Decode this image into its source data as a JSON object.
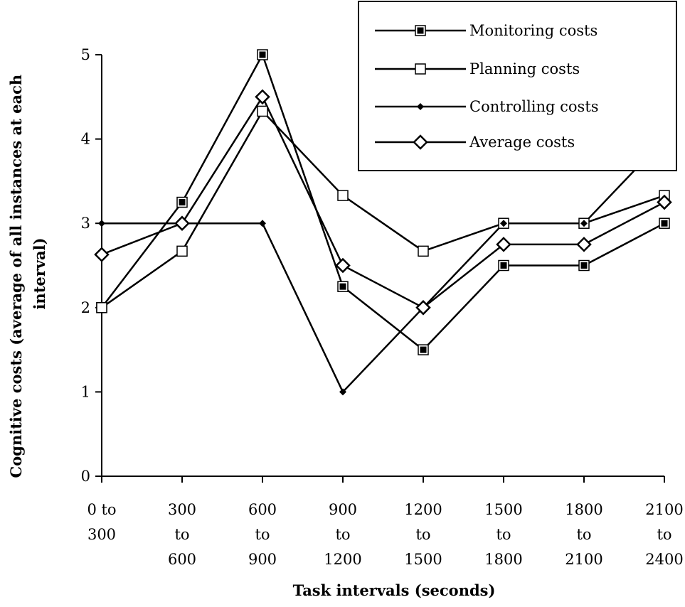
{
  "chart_data": {
    "type": "line",
    "title": "",
    "xlabel": "Task intervals (seconds)",
    "ylabel_lines": [
      "Cognitive costs (average of all instances at each",
      "interval)"
    ],
    "ylim": [
      0,
      5
    ],
    "yticks": [
      "0",
      "1",
      "2",
      "3",
      "4",
      "5"
    ],
    "grid": false,
    "legend_placement": "top-right",
    "categories": [
      [
        "0 to",
        "300"
      ],
      [
        "300",
        "to",
        "600"
      ],
      [
        "600",
        "to",
        "900"
      ],
      [
        "900",
        "to",
        "1200"
      ],
      [
        "1200",
        "to",
        "1500"
      ],
      [
        "1500",
        "to",
        "1800"
      ],
      [
        "1800",
        "to",
        "2100"
      ],
      [
        "2100",
        "to",
        "2400"
      ]
    ],
    "series": [
      {
        "name": "Monitoring costs",
        "marker": "filled-square",
        "values": [
          2.0,
          3.25,
          5.0,
          2.25,
          1.5,
          2.5,
          2.5,
          3.0
        ]
      },
      {
        "name": "Planning costs",
        "marker": "open-square",
        "values": [
          2.0,
          2.67,
          4.33,
          3.33,
          2.67,
          3.0,
          3.0,
          3.33
        ]
      },
      {
        "name": "Controlling costs",
        "marker": "small-diamond",
        "values": [
          3.0,
          3.0,
          3.0,
          1.0,
          2.0,
          3.0,
          3.0,
          4.0
        ]
      },
      {
        "name": "Average costs",
        "marker": "open-diamond",
        "values": [
          2.63,
          3.0,
          4.5,
          2.5,
          2.0,
          2.75,
          2.75,
          3.25
        ]
      }
    ]
  }
}
